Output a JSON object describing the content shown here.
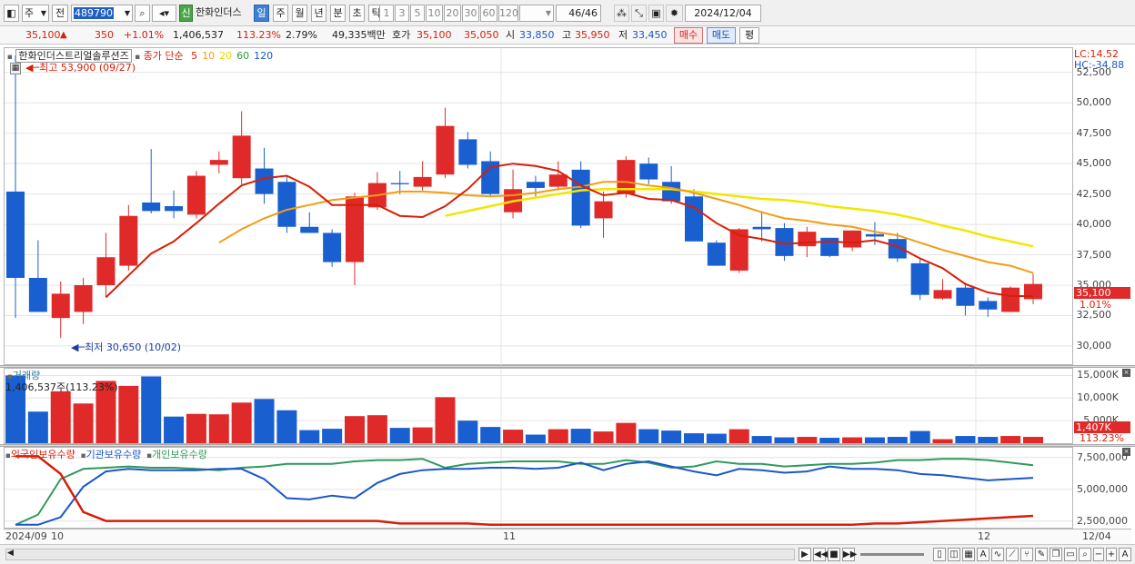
{
  "toolbar": {
    "period": "주",
    "prev": "전",
    "code": "489790",
    "badge": "신",
    "name": "한화인더스",
    "intervals": [
      "일",
      "주",
      "월",
      "년",
      "분",
      "초",
      "틱"
    ],
    "active_interval": "일",
    "minutes": [
      "1",
      "3",
      "5",
      "10",
      "20",
      "30",
      "60",
      "120"
    ],
    "count": "46",
    "count_total": "/46",
    "date": "2024/12/04"
  },
  "quote": {
    "price": "35,100",
    "arrow": "▲",
    "change": "350",
    "change_pct": "+1.01%",
    "volume": "1,406,537",
    "vol_ratio": "113.23%",
    "turnover": "2.79%",
    "amount": "49,335백만",
    "ask_label": "호가",
    "ask1": "35,100",
    "ask2": "35,050",
    "open_label": "시",
    "open": "33,850",
    "high_label": "고",
    "high": "35,950",
    "low_label": "저",
    "low": "33,450",
    "buy": "매수",
    "sell": "매도",
    "flat": "평"
  },
  "price_pane": {
    "stock_label": "한화인더스트리얼솔루션즈",
    "ma_label": "종가 단순",
    "ma_periods": [
      {
        "p": "5",
        "color": "#d81e06"
      },
      {
        "p": "10",
        "color": "#f39c12"
      },
      {
        "p": "20",
        "color": "#e8d800"
      },
      {
        "p": "60",
        "color": "#2f9a3a"
      },
      {
        "p": "120",
        "color": "#1a56c9"
      }
    ],
    "high_note": "최고 53,900 (09/27)",
    "low_note": "최저 30,650 (10/02)",
    "lc": "LC:14.52",
    "hc": "HC:-34.88",
    "y_ticks": [
      "52,500",
      "50,000",
      "47,500",
      "45,000",
      "42,500",
      "40,000",
      "37,500",
      "35,000",
      "32,500",
      "30,000"
    ],
    "last_price": "35,100",
    "last_pct": "1.01%"
  },
  "volume_pane": {
    "title": "거래량",
    "readout": "1,406,537주(113.23%)",
    "y_ticks": [
      "15,000K",
      "10,000K",
      "5,000K"
    ],
    "last_tag": "1,407K",
    "last_pct": "113.23%"
  },
  "holding_pane": {
    "legend": [
      {
        "label": "외국인보유수량",
        "color": "#d81e06"
      },
      {
        "label": "기관보유수량",
        "color": "#1a56c9"
      },
      {
        "label": "개인보유수량",
        "color": "#2f9a5a"
      }
    ],
    "y_ticks": [
      "7,500,000",
      "5,000,000",
      "2,500,000"
    ]
  },
  "x_axis": {
    "labels": [
      "2024/09",
      "10",
      "11",
      "12"
    ],
    "last_date": "12/04"
  },
  "colors": {
    "up": "#e02a2a",
    "down": "#1a5fd0",
    "ma5": "#d81e06",
    "ma10": "#f39c12",
    "ma20": "#f2e600"
  },
  "chart_data": {
    "type": "candlestick",
    "ylim": [
      28500,
      54500
    ],
    "candles": [
      {
        "o": 42700,
        "h": 53900,
        "l": 32300,
        "c": 35600
      },
      {
        "o": 35600,
        "h": 38700,
        "l": 33000,
        "c": 32800
      },
      {
        "o": 32300,
        "h": 35300,
        "l": 30650,
        "c": 34300
      },
      {
        "o": 32800,
        "h": 35600,
        "l": 31800,
        "c": 35000
      },
      {
        "o": 35000,
        "h": 39300,
        "l": 34000,
        "c": 37300
      },
      {
        "o": 36600,
        "h": 41600,
        "l": 36200,
        "c": 40700
      },
      {
        "o": 41800,
        "h": 46200,
        "l": 40900,
        "c": 41100
      },
      {
        "o": 41500,
        "h": 42800,
        "l": 40500,
        "c": 41100
      },
      {
        "o": 40800,
        "h": 44400,
        "l": 40500,
        "c": 44000
      },
      {
        "o": 44900,
        "h": 46000,
        "l": 44200,
        "c": 45300
      },
      {
        "o": 43800,
        "h": 49300,
        "l": 43300,
        "c": 47300
      },
      {
        "o": 44600,
        "h": 46300,
        "l": 41700,
        "c": 42500
      },
      {
        "o": 43500,
        "h": 44000,
        "l": 39300,
        "c": 39800
      },
      {
        "o": 39800,
        "h": 41000,
        "l": 39400,
        "c": 39300
      },
      {
        "o": 39300,
        "h": 39600,
        "l": 36500,
        "c": 36900
      },
      {
        "o": 36900,
        "h": 42600,
        "l": 35000,
        "c": 42300
      },
      {
        "o": 41400,
        "h": 44300,
        "l": 41200,
        "c": 43400
      },
      {
        "o": 43400,
        "h": 44400,
        "l": 42500,
        "c": 43300
      },
      {
        "o": 43100,
        "h": 45200,
        "l": 42800,
        "c": 43900
      },
      {
        "o": 44100,
        "h": 49600,
        "l": 43800,
        "c": 48100
      },
      {
        "o": 47000,
        "h": 47600,
        "l": 44600,
        "c": 44900
      },
      {
        "o": 45200,
        "h": 46000,
        "l": 42300,
        "c": 42500
      },
      {
        "o": 41000,
        "h": 44500,
        "l": 40500,
        "c": 42900
      },
      {
        "o": 43500,
        "h": 44000,
        "l": 42300,
        "c": 43000
      },
      {
        "o": 43100,
        "h": 45200,
        "l": 42800,
        "c": 44100
      },
      {
        "o": 44500,
        "h": 45200,
        "l": 39700,
        "c": 39900
      },
      {
        "o": 40500,
        "h": 42700,
        "l": 38900,
        "c": 41900
      },
      {
        "o": 42500,
        "h": 45600,
        "l": 42200,
        "c": 45300
      },
      {
        "o": 45000,
        "h": 45500,
        "l": 43300,
        "c": 43700
      },
      {
        "o": 43500,
        "h": 44800,
        "l": 41700,
        "c": 41900
      },
      {
        "o": 42300,
        "h": 42900,
        "l": 38600,
        "c": 38600
      },
      {
        "o": 38500,
        "h": 38700,
        "l": 36600,
        "c": 36600
      },
      {
        "o": 36200,
        "h": 39700,
        "l": 36000,
        "c": 39600
      },
      {
        "o": 39800,
        "h": 41100,
        "l": 38600,
        "c": 39600
      },
      {
        "o": 39700,
        "h": 40100,
        "l": 37000,
        "c": 37400
      },
      {
        "o": 38200,
        "h": 39800,
        "l": 37300,
        "c": 39400
      },
      {
        "o": 38900,
        "h": 38900,
        "l": 37300,
        "c": 37400
      },
      {
        "o": 38100,
        "h": 39500,
        "l": 37800,
        "c": 39500
      },
      {
        "o": 39200,
        "h": 40200,
        "l": 38300,
        "c": 39000
      },
      {
        "o": 38800,
        "h": 39300,
        "l": 36900,
        "c": 37200
      },
      {
        "o": 36800,
        "h": 37100,
        "l": 33800,
        "c": 34200
      },
      {
        "o": 33900,
        "h": 35500,
        "l": 33800,
        "c": 34600
      },
      {
        "o": 34800,
        "h": 35200,
        "l": 32500,
        "c": 33300
      },
      {
        "o": 33700,
        "h": 34000,
        "l": 32400,
        "c": 33000
      },
      {
        "o": 32800,
        "h": 34900,
        "l": 32800,
        "c": 34800
      },
      {
        "o": 33850,
        "h": 35950,
        "l": 33450,
        "c": 35100
      }
    ],
    "ma5": [
      null,
      null,
      null,
      null,
      34000,
      35800,
      37600,
      38600,
      40100,
      41700,
      43200,
      43800,
      44000,
      43100,
      41600,
      41600,
      41600,
      40700,
      40600,
      41500,
      42900,
      44700,
      45000,
      44800,
      44400,
      43200,
      42400,
      42600,
      42100,
      42000,
      41400,
      40100,
      39100,
      38800,
      38400,
      38500,
      38600,
      38500,
      38700,
      38200,
      37200,
      36400,
      35100,
      34400,
      34100,
      34100
    ],
    "ma10": [
      null,
      null,
      null,
      null,
      null,
      null,
      null,
      null,
      null,
      38500,
      39600,
      40500,
      41200,
      41600,
      42000,
      42200,
      42400,
      42700,
      42700,
      42600,
      42400,
      42300,
      42400,
      42600,
      42900,
      43100,
      43500,
      43500,
      43200,
      43000,
      42600,
      42100,
      41600,
      41000,
      40500,
      40300,
      40000,
      39800,
      39400,
      39100,
      38500,
      37900,
      37400,
      36900,
      36600,
      36000
    ],
    "ma20": [
      null,
      null,
      null,
      null,
      null,
      null,
      null,
      null,
      null,
      null,
      null,
      null,
      null,
      null,
      null,
      null,
      null,
      null,
      null,
      40700,
      41100,
      41500,
      41900,
      42200,
      42500,
      42800,
      42900,
      42900,
      42900,
      42900,
      42700,
      42500,
      42300,
      42100,
      42000,
      41800,
      41500,
      41300,
      41100,
      40800,
      40400,
      39900,
      39500,
      39000,
      38600,
      38200
    ],
    "volume": [
      15000,
      7000,
      11500,
      8800,
      13800,
      12700,
      14800,
      5900,
      6500,
      6400,
      9000,
      9800,
      7300,
      2900,
      3200,
      6000,
      6200,
      3400,
      3500,
      10200,
      5000,
      3600,
      3000,
      1900,
      3100,
      3200,
      2600,
      4500,
      3100,
      2800,
      2200,
      2100,
      3100,
      1600,
      1300,
      1400,
      1200,
      1300,
      1300,
      1400,
      2700,
      900,
      1600,
      1400,
      1600,
      1407
    ],
    "foreign": [
      7600,
      7600,
      6200,
      3200,
      2500,
      2500,
      2500,
      2500,
      2500,
      2500,
      2500,
      2500,
      2500,
      2500,
      2500,
      2500,
      2500,
      2300,
      2300,
      2300,
      2300,
      2200,
      2200,
      2200,
      2200,
      2200,
      2200,
      2200,
      2200,
      2200,
      2200,
      2200,
      2200,
      2200,
      2200,
      2200,
      2200,
      2200,
      2300,
      2300,
      2400,
      2500,
      2600,
      2700,
      2800,
      2900
    ],
    "institution": [
      2200,
      2200,
      2800,
      5200,
      6400,
      6600,
      6500,
      6500,
      6500,
      6600,
      6600,
      5800,
      4300,
      4200,
      4500,
      4300,
      5500,
      6200,
      6500,
      6600,
      6600,
      6700,
      6700,
      6600,
      6700,
      7100,
      6500,
      7000,
      7200,
      6800,
      6400,
      6100,
      6600,
      6500,
      6300,
      6400,
      6800,
      6600,
      6600,
      6500,
      6200,
      6100,
      5900,
      5700,
      5800,
      5900
    ],
    "individual": [
      2200,
      3000,
      5800,
      6600,
      6700,
      6800,
      6700,
      6700,
      6600,
      6500,
      6700,
      6800,
      7000,
      7000,
      7000,
      7200,
      7300,
      7300,
      7400,
      6700,
      7000,
      7100,
      7200,
      7200,
      7200,
      7000,
      7000,
      7300,
      7100,
      6700,
      6800,
      7200,
      7000,
      7000,
      6800,
      6900,
      7000,
      7000,
      7100,
      7300,
      7300,
      7400,
      7400,
      7300,
      7100,
      6900
    ]
  }
}
